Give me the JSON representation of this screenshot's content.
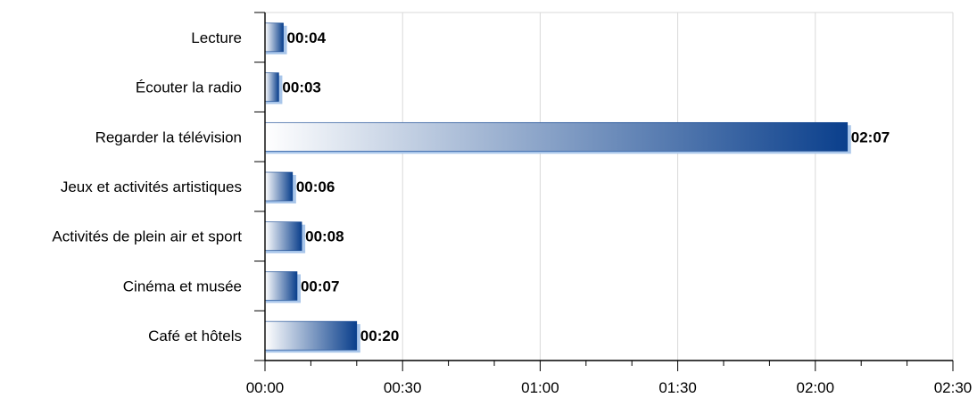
{
  "chart_data": {
    "type": "bar",
    "orientation": "horizontal",
    "categories": [
      "Lecture",
      "Écouter la radio",
      "Regarder la télévision",
      "Jeux et activités artistiques",
      "Activités de plein air et sport",
      "Cinéma et musée",
      "Café et hôtels"
    ],
    "values": [
      4,
      3,
      127,
      6,
      8,
      7,
      20
    ],
    "data_labels": [
      "00:04",
      "00:03",
      "02:07",
      "00:06",
      "00:08",
      "00:07",
      "00:20"
    ],
    "x_ticks": [
      0,
      30,
      60,
      90,
      120,
      150
    ],
    "x_tick_labels": [
      "00:00",
      "00:30",
      "01:00",
      "01:30",
      "02:00",
      "02:30"
    ],
    "xlim": [
      0,
      150
    ],
    "grid": true,
    "legend": "none",
    "colors": {
      "bar_dark": "#0a3f8c",
      "bar_light": "#ffffff",
      "bar_shadow": "#a9c6ea",
      "grid": "#d9d9d9"
    }
  }
}
